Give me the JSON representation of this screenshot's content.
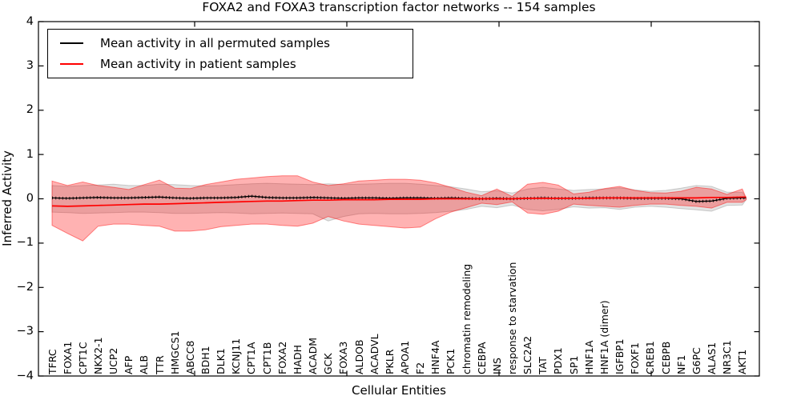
{
  "chart_data": {
    "type": "line",
    "title": "FOXA2 and FOXA3 transcription factor networks -- 154 samples",
    "xlabel": "Cellular Entities",
    "ylabel": "Inferred Activity",
    "ylim": [
      -4,
      4
    ],
    "yticks": [
      -4,
      -3,
      -2,
      -1,
      0,
      1,
      2,
      3,
      4
    ],
    "grid": false,
    "legend_position": "upper left",
    "categories": [
      "TFRC",
      "FOXA1",
      "CPT1C",
      "NKX2-1",
      "UCP2",
      "AFP",
      "ALB",
      "TTR",
      "HMGCS1",
      "ABCC8",
      "BDH1",
      "DLK1",
      "KCNJ11",
      "CPT1A",
      "CPT1B",
      "FOXA2",
      "HADH",
      "ACADM",
      "GCK",
      "FOXA3",
      "ALDOB",
      "ACADVL",
      "PKLR",
      "APOA1",
      "F2",
      "HNF4A",
      "PCK1",
      "chromatin remodeling",
      "CEBPA",
      "INS",
      "response to starvation",
      "SLC2A2",
      "TAT",
      "PDX1",
      "SP1",
      "HNF1A",
      "HNF1A (dimer)",
      "IGFBP1",
      "FOXF1",
      "CREB1",
      "CEBPB",
      "NF1",
      "G6PC",
      "ALAS1",
      "NR3C1",
      "AKT1"
    ],
    "series": [
      {
        "name": "Mean activity in all permuted samples",
        "color": "#000000",
        "marker": "tick",
        "values": [
          0.02,
          0.01,
          0.02,
          0.03,
          0.02,
          0.02,
          0.03,
          0.04,
          0.02,
          0.01,
          0.02,
          0.02,
          0.03,
          0.06,
          0.03,
          0.02,
          0.02,
          0.03,
          0.02,
          0.01,
          0.02,
          0.02,
          0.01,
          0.02,
          0.02,
          0.01,
          0.02,
          0.01,
          0.0,
          0.01,
          0.0,
          0.01,
          0.02,
          0.01,
          0.01,
          0.02,
          0.02,
          0.02,
          0.01,
          0.01,
          0.01,
          0.0,
          -0.06,
          -0.05,
          0.01,
          0.02
        ]
      },
      {
        "name": "Mean activity in patient samples",
        "color": "#ff0000",
        "marker": "none",
        "values": [
          -0.16,
          -0.17,
          -0.16,
          -0.15,
          -0.14,
          -0.13,
          -0.12,
          -0.12,
          -0.11,
          -0.1,
          -0.09,
          -0.08,
          -0.07,
          -0.06,
          -0.05,
          -0.05,
          -0.04,
          -0.03,
          -0.03,
          -0.02,
          -0.02,
          -0.02,
          -0.01,
          -0.01,
          -0.01,
          0.0,
          0.0,
          0.0,
          0.0,
          0.0,
          0.0,
          0.01,
          0.01,
          0.01,
          0.01,
          0.01,
          0.02,
          0.02,
          0.02,
          0.02,
          0.02,
          0.02,
          0.02,
          0.03,
          0.03,
          0.04
        ]
      }
    ],
    "bands": [
      {
        "name": "permuted samples range",
        "color": "#808080",
        "fill_opacity": 0.22,
        "upper": [
          0.3,
          0.28,
          0.3,
          0.31,
          0.33,
          0.3,
          0.3,
          0.33,
          0.32,
          0.3,
          0.29,
          0.3,
          0.32,
          0.34,
          0.35,
          0.34,
          0.33,
          0.32,
          0.34,
          0.32,
          0.33,
          0.34,
          0.35,
          0.35,
          0.33,
          0.3,
          0.27,
          0.22,
          0.16,
          0.18,
          0.13,
          0.22,
          0.26,
          0.22,
          0.19,
          0.21,
          0.22,
          0.25,
          0.2,
          0.17,
          0.19,
          0.24,
          0.3,
          0.28,
          0.15,
          0.15
        ],
        "lower": [
          -0.3,
          -0.31,
          -0.33,
          -0.32,
          -0.31,
          -0.3,
          -0.3,
          -0.31,
          -0.33,
          -0.33,
          -0.32,
          -0.31,
          -0.32,
          -0.34,
          -0.33,
          -0.32,
          -0.33,
          -0.34,
          -0.5,
          -0.4,
          -0.34,
          -0.33,
          -0.34,
          -0.34,
          -0.33,
          -0.31,
          -0.28,
          -0.24,
          -0.17,
          -0.2,
          -0.14,
          -0.24,
          -0.27,
          -0.24,
          -0.18,
          -0.21,
          -0.2,
          -0.24,
          -0.19,
          -0.17,
          -0.19,
          -0.22,
          -0.25,
          -0.28,
          -0.15,
          -0.14
        ]
      },
      {
        "name": "patient samples range",
        "color": "#ff0000",
        "fill_opacity": 0.3,
        "upper": [
          0.4,
          0.3,
          0.38,
          0.3,
          0.26,
          0.21,
          0.32,
          0.42,
          0.24,
          0.23,
          0.32,
          0.38,
          0.44,
          0.47,
          0.5,
          0.52,
          0.52,
          0.38,
          0.3,
          0.34,
          0.4,
          0.42,
          0.44,
          0.44,
          0.42,
          0.36,
          0.26,
          0.15,
          0.07,
          0.22,
          0.05,
          0.33,
          0.37,
          0.31,
          0.11,
          0.15,
          0.23,
          0.28,
          0.19,
          0.14,
          0.13,
          0.17,
          0.26,
          0.22,
          0.1,
          0.22
        ],
        "lower": [
          -0.6,
          -0.78,
          -0.95,
          -0.62,
          -0.57,
          -0.57,
          -0.6,
          -0.62,
          -0.73,
          -0.73,
          -0.7,
          -0.63,
          -0.6,
          -0.57,
          -0.57,
          -0.6,
          -0.62,
          -0.55,
          -0.4,
          -0.5,
          -0.57,
          -0.6,
          -0.63,
          -0.66,
          -0.64,
          -0.45,
          -0.3,
          -0.2,
          -0.1,
          -0.13,
          -0.07,
          -0.32,
          -0.35,
          -0.28,
          -0.12,
          -0.15,
          -0.17,
          -0.19,
          -0.15,
          -0.12,
          -0.12,
          -0.15,
          -0.17,
          -0.21,
          -0.08,
          -0.08
        ]
      }
    ]
  }
}
